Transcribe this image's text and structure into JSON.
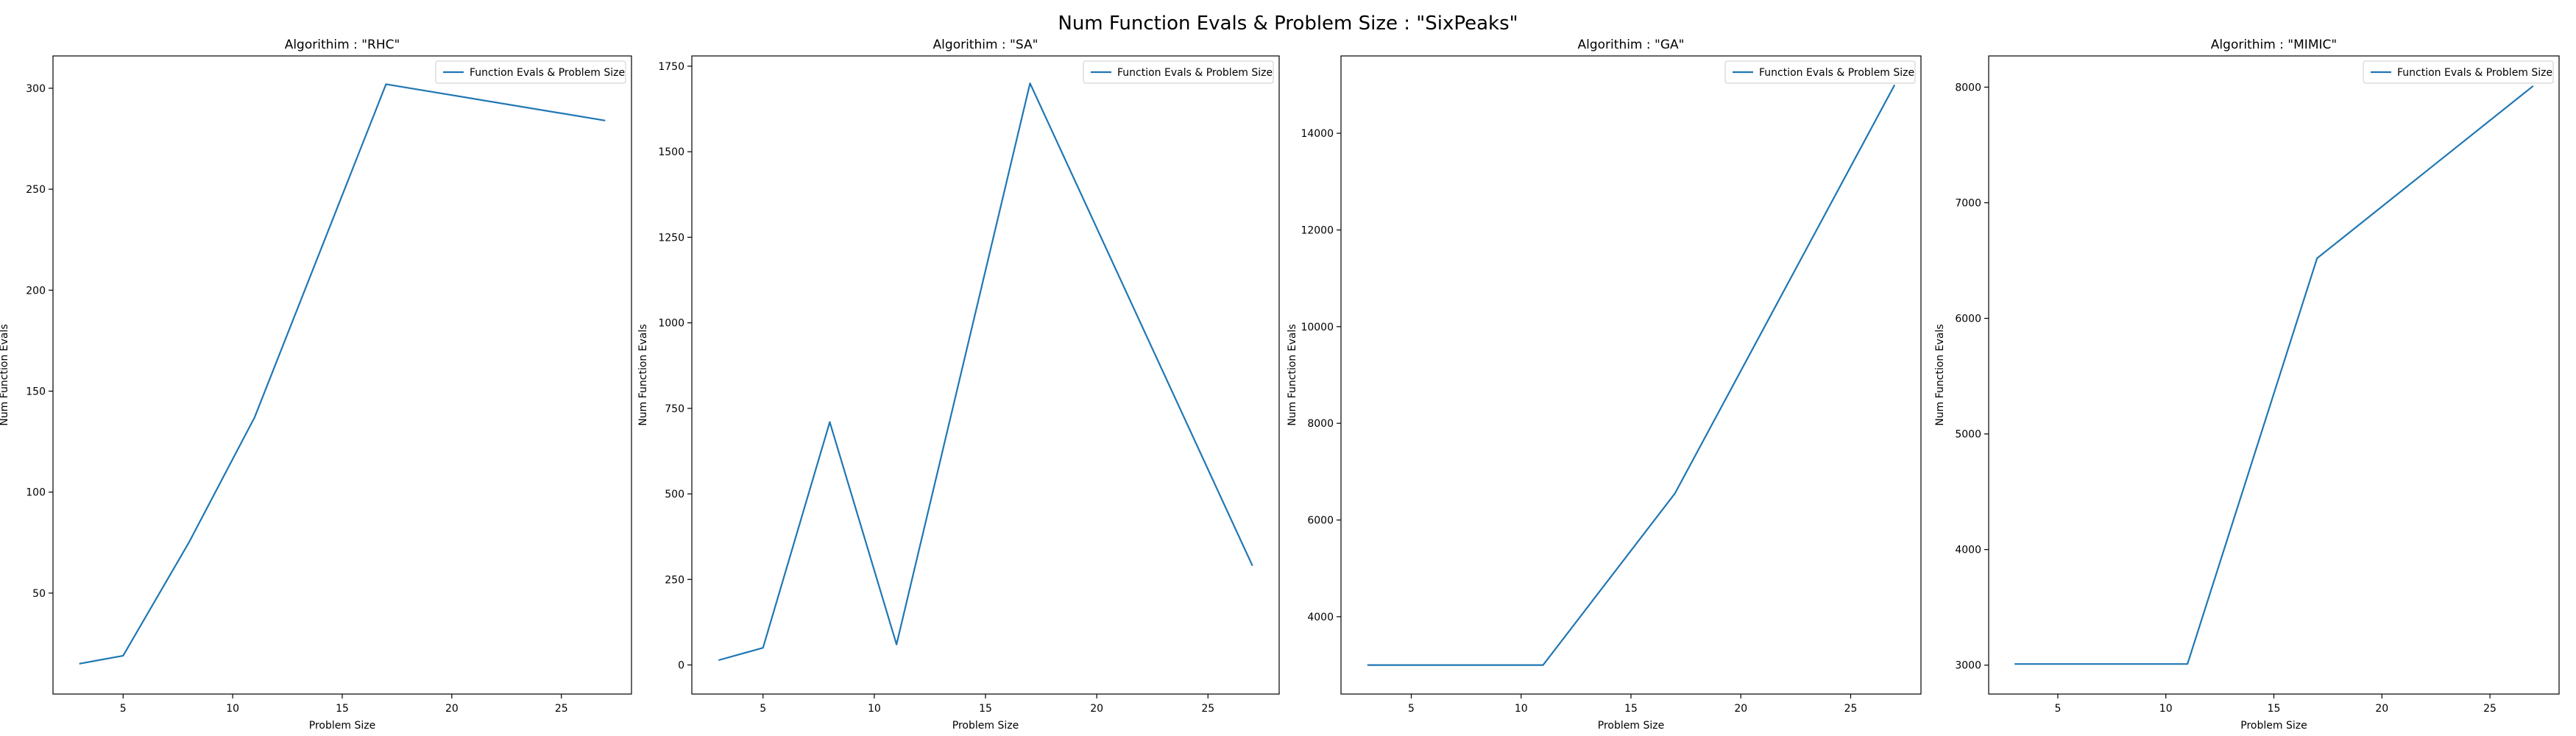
{
  "figure": {
    "title": "Num Function Evals & Problem Size : \"SixPeaks\""
  },
  "colors": {
    "line": "#1f77b4",
    "axes": "#000000",
    "legend_border": "#cccccc"
  },
  "chart_data": [
    {
      "type": "line",
      "title": "Algorithim : \"RHC\"",
      "xlabel": "Problem Size",
      "ylabel": "Num Function Evals",
      "xlim": [
        1.8,
        28.2
      ],
      "ylim": [
        0,
        316
      ],
      "xticks": [
        5,
        10,
        15,
        20,
        25
      ],
      "yticks": [
        50,
        100,
        150,
        200,
        250,
        300
      ],
      "legend": "upper right",
      "series": [
        {
          "name": "Function Evals & Problem Size",
          "x": [
            3,
            5,
            8,
            11,
            17,
            27
          ],
          "y": [
            15,
            19,
            75,
            137,
            302,
            284
          ]
        }
      ]
    },
    {
      "type": "line",
      "title": "Algorithim : \"SA\"",
      "xlabel": "Problem Size",
      "ylabel": "Num Function Evals",
      "xlim": [
        1.8,
        28.2
      ],
      "ylim": [
        -85,
        1780
      ],
      "xticks": [
        5,
        10,
        15,
        20,
        25
      ],
      "yticks": [
        0,
        250,
        500,
        750,
        1000,
        1250,
        1500,
        1750
      ],
      "legend": "upper right",
      "series": [
        {
          "name": "Function Evals & Problem Size",
          "x": [
            3,
            5,
            8,
            11,
            17,
            27
          ],
          "y": [
            14,
            50,
            710,
            60,
            1700,
            290
          ]
        }
      ]
    },
    {
      "type": "line",
      "title": "Algorithim : \"GA\"",
      "xlabel": "Problem Size",
      "ylabel": "Num Function Evals",
      "xlim": [
        1.8,
        28.2
      ],
      "ylim": [
        2400,
        15600
      ],
      "xticks": [
        5,
        10,
        15,
        20,
        25
      ],
      "yticks": [
        4000,
        6000,
        8000,
        10000,
        12000,
        14000
      ],
      "legend": "upper right",
      "series": [
        {
          "name": "Function Evals & Problem Size",
          "x": [
            3,
            5,
            8,
            11,
            17,
            27
          ],
          "y": [
            3000,
            3000,
            3000,
            3000,
            6550,
            15000
          ]
        }
      ]
    },
    {
      "type": "line",
      "title": "Algorithim : \"MIMIC\"",
      "xlabel": "Problem Size",
      "ylabel": "Num Function Evals",
      "xlim": [
        1.8,
        28.2
      ],
      "ylim": [
        2750,
        8270
      ],
      "xticks": [
        5,
        10,
        15,
        20,
        25
      ],
      "yticks": [
        3000,
        4000,
        5000,
        6000,
        7000,
        8000
      ],
      "legend": "upper right",
      "series": [
        {
          "name": "Function Evals & Problem Size",
          "x": [
            3,
            5,
            8,
            11,
            17,
            27
          ],
          "y": [
            3010,
            3010,
            3010,
            3010,
            6520,
            8010
          ]
        }
      ]
    }
  ]
}
